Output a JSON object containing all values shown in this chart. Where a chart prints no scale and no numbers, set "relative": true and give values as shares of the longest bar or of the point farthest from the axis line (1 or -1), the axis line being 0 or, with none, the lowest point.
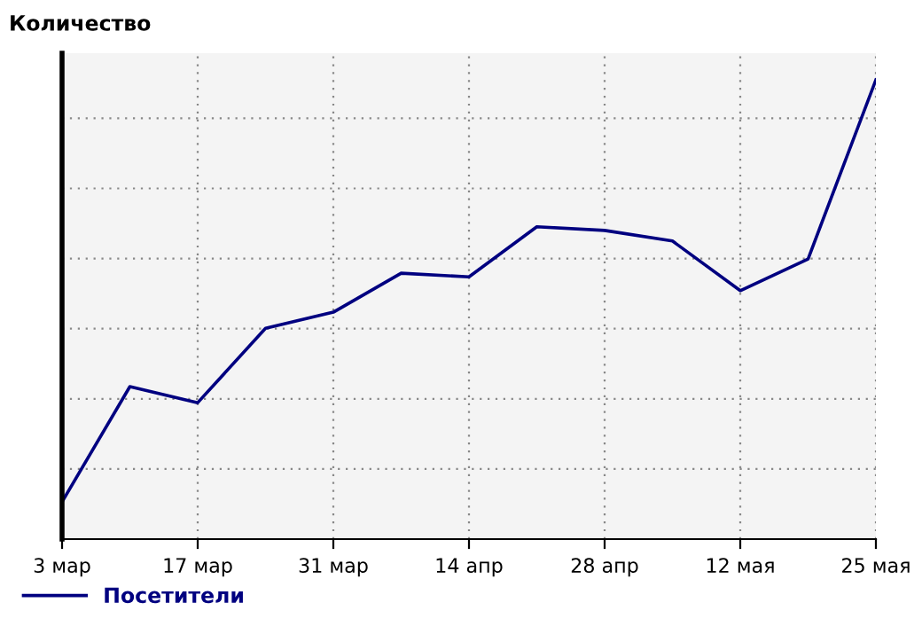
{
  "chart_data": {
    "type": "line",
    "ylabel": "Количество",
    "relative": true,
    "categories": [
      "3 мар",
      null,
      "17 мар",
      null,
      "31 мар",
      null,
      "14 апр",
      null,
      "28 апр",
      null,
      "12 мая",
      null,
      "25 мая"
    ],
    "series": [
      {
        "name": "Посетители",
        "color": "#000080",
        "values": [
          0.081,
          0.332,
          0.297,
          0.459,
          0.494,
          0.579,
          0.571,
          0.68,
          0.672,
          0.649,
          0.541,
          0.61,
          1
        ]
      }
    ],
    "grid": true,
    "legend": "bottom left",
    "marker": "none",
    "line_style": "solid"
  }
}
